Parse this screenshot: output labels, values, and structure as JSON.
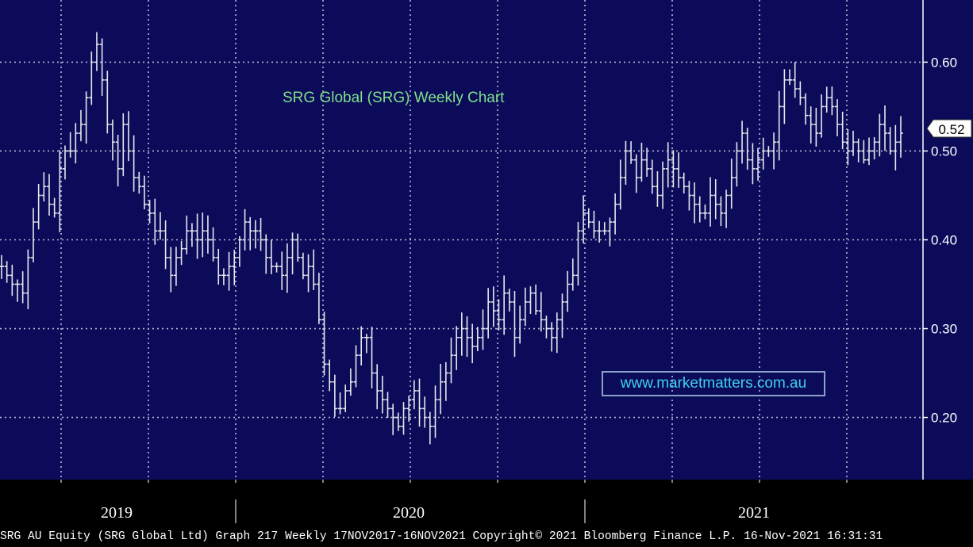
{
  "chart_data": {
    "type": "bar",
    "style": "ohlc",
    "title": "SRG Global (SRG) Weekly Chart",
    "watermark": "www.marketmatters.com.au",
    "footer": "SRG AU Equity (SRG Global Ltd) Graph 217  Weekly 17NOV2017-16NOV2021 Copyright© 2021 Bloomberg Finance L.P. 16-Nov-2021 16:31:31",
    "last_price_label": "0.52",
    "last_price": 0.52,
    "ylim": [
      0.13,
      0.67
    ],
    "y_ticks": [
      0.2,
      0.3,
      0.4,
      0.5,
      0.6
    ],
    "y_tick_labels": [
      "0.20",
      "0.30",
      "0.40",
      "0.50",
      "0.60"
    ],
    "x_labels": [
      "2019",
      "2020",
      "2021"
    ],
    "grid": true,
    "colors": {
      "background": "#0b0b5a",
      "grid": "#b9b9d6",
      "bars": "#e6e6ee",
      "axis_text": "#ffffff",
      "title": "#7fe08a",
      "watermark": "#3fd0e8"
    },
    "series": [
      {
        "values": [
          0.37,
          0.36,
          0.35,
          0.35,
          0.34,
          0.38,
          0.42,
          0.45,
          0.46,
          0.44,
          0.43,
          0.48,
          0.5,
          0.5,
          0.52,
          0.53,
          0.56,
          0.6,
          0.62,
          0.58,
          0.53,
          0.51,
          0.48,
          0.53,
          0.5,
          0.47,
          0.46,
          0.44,
          0.43,
          0.41,
          0.41,
          0.38,
          0.36,
          0.38,
          0.39,
          0.41,
          0.41,
          0.4,
          0.41,
          0.4,
          0.38,
          0.36,
          0.36,
          0.37,
          0.38,
          0.4,
          0.42,
          0.41,
          0.41,
          0.4,
          0.38,
          0.37,
          0.37,
          0.36,
          0.38,
          0.4,
          0.38,
          0.36,
          0.37,
          0.35,
          0.31,
          0.26,
          0.24,
          0.21,
          0.21,
          0.23,
          0.24,
          0.27,
          0.29,
          0.29,
          0.25,
          0.23,
          0.22,
          0.21,
          0.2,
          0.19,
          0.21,
          0.22,
          0.23,
          0.21,
          0.2,
          0.19,
          0.22,
          0.24,
          0.25,
          0.27,
          0.29,
          0.3,
          0.29,
          0.28,
          0.29,
          0.3,
          0.33,
          0.32,
          0.31,
          0.34,
          0.33,
          0.29,
          0.31,
          0.33,
          0.34,
          0.32,
          0.31,
          0.3,
          0.29,
          0.31,
          0.33,
          0.35,
          0.36,
          0.41,
          0.43,
          0.42,
          0.41,
          0.41,
          0.41,
          0.42,
          0.44,
          0.47,
          0.5,
          0.49,
          0.47,
          0.49,
          0.48,
          0.46,
          0.45,
          0.48,
          0.49,
          0.48,
          0.47,
          0.46,
          0.45,
          0.44,
          0.43,
          0.43,
          0.45,
          0.44,
          0.43,
          0.45,
          0.47,
          0.5,
          0.52,
          0.49,
          0.48,
          0.49,
          0.5,
          0.5,
          0.51,
          0.55,
          0.58,
          0.58,
          0.57,
          0.56,
          0.54,
          0.53,
          0.52,
          0.55,
          0.56,
          0.55,
          0.53,
          0.51,
          0.5,
          0.51,
          0.5,
          0.49,
          0.5,
          0.51,
          0.53,
          0.52,
          0.5,
          0.51,
          0.52
        ]
      }
    ]
  }
}
